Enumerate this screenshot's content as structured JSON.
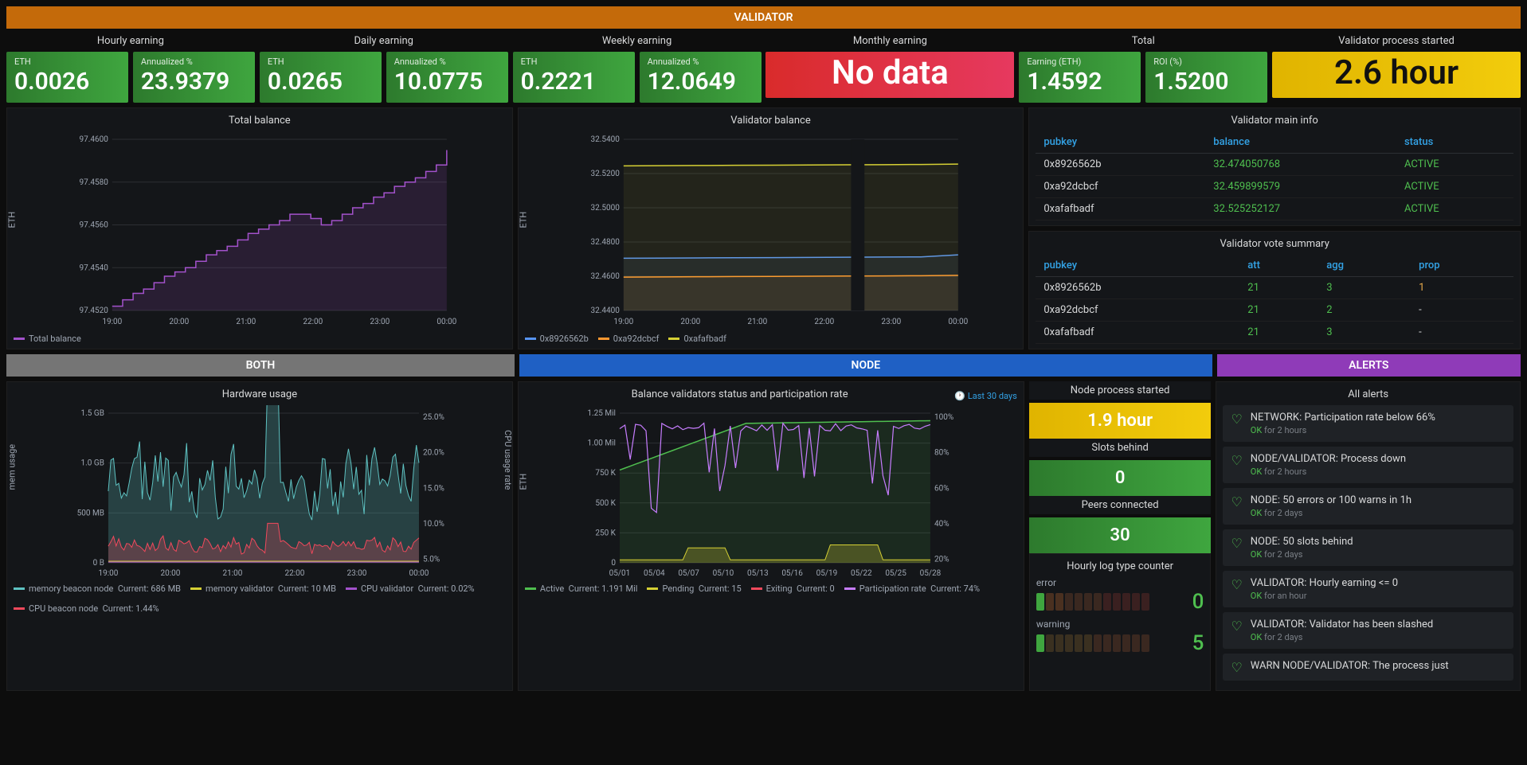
{
  "sections": {
    "validator": "VALIDATOR",
    "both": "BOTH",
    "node": "NODE",
    "alerts": "ALERTS"
  },
  "earnings": {
    "hourly": {
      "title": "Hourly earning",
      "eth_label": "ETH",
      "eth": "0.0026",
      "pct_label": "Annualized %",
      "pct": "23.9379"
    },
    "daily": {
      "title": "Daily earning",
      "eth_label": "ETH",
      "eth": "0.0265",
      "pct_label": "Annualized %",
      "pct": "10.0775"
    },
    "weekly": {
      "title": "Weekly earning",
      "eth_label": "ETH",
      "eth": "0.2221",
      "pct_label": "Annualized %",
      "pct": "12.0649"
    },
    "monthly": {
      "title": "Monthly earning",
      "nodata": "No data"
    },
    "total": {
      "title": "Total",
      "eth_label": "Earning (ETH)",
      "eth": "1.4592",
      "roi_label": "ROI (%)",
      "roi": "1.5200"
    },
    "process": {
      "title": "Validator process started",
      "value": "2.6 hour"
    }
  },
  "total_balance": {
    "title": "Total balance",
    "y_label": "ETH",
    "y_ticks": [
      "97.4520",
      "97.4540",
      "97.4560",
      "97.4580",
      "97.4600"
    ],
    "x_ticks": [
      "19:00",
      "20:00",
      "21:00",
      "22:00",
      "23:00",
      "00:00"
    ],
    "legend": "Total balance",
    "color": "#a352cc",
    "series": [
      97.4522,
      97.4525,
      97.4528,
      97.453,
      97.4533,
      97.4536,
      97.4538,
      97.454,
      97.4543,
      97.4546,
      97.4548,
      97.455,
      97.4553,
      97.4556,
      97.4558,
      97.456,
      97.4562,
      97.4565,
      97.4565,
      97.4563,
      97.456,
      97.4562,
      97.4565,
      97.4568,
      97.457,
      97.4573,
      97.4575,
      97.4578,
      97.458,
      97.4582,
      97.4585,
      97.4588,
      97.4595
    ]
  },
  "validator_balance": {
    "title": "Validator balance",
    "y_label": "ETH",
    "y_ticks": [
      "32.4400",
      "32.4600",
      "32.4800",
      "32.5000",
      "32.5200",
      "32.5400"
    ],
    "x_ticks": [
      "19:00",
      "20:00",
      "21:00",
      "22:00",
      "23:00",
      "00:00"
    ],
    "series": [
      {
        "name": "0x8926562b",
        "color": "#5794f2",
        "values": [
          32.4705,
          32.4706,
          32.4707,
          32.4708,
          32.4709,
          32.471,
          32.4711,
          32.4712,
          32.4713,
          32.4725
        ]
      },
      {
        "name": "0xa92dcbcf",
        "color": "#ff9830",
        "values": [
          32.4595,
          32.4596,
          32.4597,
          32.4598,
          32.4599,
          32.46,
          32.4601,
          32.4602,
          32.4603,
          32.4605
        ]
      },
      {
        "name": "0xafafbadf",
        "color": "#d6d034",
        "values": [
          32.5245,
          32.5246,
          32.5247,
          32.5248,
          32.5249,
          32.525,
          32.5251,
          32.5252,
          32.5253,
          32.5255
        ]
      }
    ]
  },
  "main_info": {
    "title": "Validator main info",
    "headers": [
      "pubkey",
      "balance",
      "status"
    ],
    "rows": [
      [
        "0x8926562b",
        "32.474050768",
        "ACTIVE"
      ],
      [
        "0xa92dcbcf",
        "32.459899579",
        "ACTIVE"
      ],
      [
        "0xafafbadf",
        "32.525252127",
        "ACTIVE"
      ]
    ]
  },
  "vote_summary": {
    "title": "Validator vote summary",
    "headers": [
      "pubkey",
      "att",
      "agg",
      "prop"
    ],
    "rows": [
      [
        "0x8926562b",
        "21",
        "3",
        "1"
      ],
      [
        "0xa92dcbcf",
        "21",
        "2",
        "-"
      ],
      [
        "0xafafbadf",
        "21",
        "3",
        "-"
      ]
    ]
  },
  "hardware": {
    "title": "Hardware usage",
    "y_left_label": "mem usage",
    "y_right_label": "CPU usage rate",
    "y_left_ticks": [
      "0 B",
      "500 MB",
      "1.0 GB",
      "1.5 GB"
    ],
    "y_right_ticks": [
      "25.0%",
      "20.0%",
      "15.0%",
      "10.0%",
      "5.0%"
    ],
    "x_ticks": [
      "19:00",
      "20:00",
      "21:00",
      "22:00",
      "23:00",
      "00:00"
    ],
    "legend": [
      {
        "name": "memory beacon node",
        "extra": "Current: 686 MB",
        "color": "#5ec2c2"
      },
      {
        "name": "memory validator",
        "extra": "Current: 10 MB",
        "color": "#d6d034"
      },
      {
        "name": "CPU validator",
        "extra": "Current: 0.02%",
        "color": "#a352cc"
      },
      {
        "name": "CPU beacon node",
        "extra": "Current: 1.44%",
        "color": "#f2495c"
      }
    ]
  },
  "participation": {
    "title": "Balance validators status and participation rate",
    "timerange": "Last 30 days",
    "y_left_label": "ETH",
    "y_left_ticks": [
      "0",
      "250 K",
      "500 K",
      "750 K",
      "1.00 Mil",
      "1.25 Mil"
    ],
    "y_right_ticks": [
      "100%",
      "80%",
      "60%",
      "40%",
      "20%"
    ],
    "x_ticks": [
      "05/01",
      "05/04",
      "05/07",
      "05/10",
      "05/13",
      "05/16",
      "05/19",
      "05/22",
      "05/25",
      "05/28"
    ],
    "legend": [
      {
        "name": "Active",
        "extra": "Current: 1.191 Mil",
        "color": "#4fbf4f"
      },
      {
        "name": "Pending",
        "extra": "Current: 15",
        "color": "#d6d034"
      },
      {
        "name": "Exiting",
        "extra": "Current: 0",
        "color": "#f2495c"
      },
      {
        "name": "Participation rate",
        "extra": "Current: 74%",
        "color": "#c77dff"
      }
    ]
  },
  "node_stats": {
    "process": {
      "title": "Node process started",
      "value": "1.9 hour",
      "bg": "yellow"
    },
    "slots": {
      "title": "Slots behind",
      "value": "0",
      "bg": "green"
    },
    "peers": {
      "title": "Peers connected",
      "value": "30",
      "bg": "green"
    }
  },
  "log_counter": {
    "title": "Hourly log type counter",
    "error": {
      "label": "error",
      "count": "0",
      "color": "#4fbf4f",
      "cells": [
        "#3fa63f",
        "#4a3020",
        "#4a3020",
        "#3a2820",
        "#3a2820",
        "#3a2820",
        "#3a2820",
        "#3a2020",
        "#3a2020",
        "#3a2020",
        "#3a2020",
        "#3a2020"
      ]
    },
    "warning": {
      "label": "warning",
      "count": "5",
      "color": "#4fbf4f",
      "cells": [
        "#3fa63f",
        "#3a3020",
        "#3a3020",
        "#3a3020",
        "#3a3020",
        "#3a3020",
        "#3a2820",
        "#3a2820",
        "#3a2820",
        "#3a2820",
        "#3a2820",
        "#3a2820"
      ]
    }
  },
  "alerts_panel": {
    "title": "All alerts",
    "items": [
      {
        "title": "NETWORK: Participation rate below 66%",
        "state": "OK",
        "dur": "for 2 hours"
      },
      {
        "title": "NODE/VALIDATOR: Process down",
        "state": "OK",
        "dur": "for 2 hours"
      },
      {
        "title": "NODE: 50 errors or 100 warns in 1h",
        "state": "OK",
        "dur": "for 2 days"
      },
      {
        "title": "NODE: 50 slots behind",
        "state": "OK",
        "dur": "for 2 days"
      },
      {
        "title": "VALIDATOR: Hourly earning <= 0",
        "state": "OK",
        "dur": "for an hour"
      },
      {
        "title": "VALIDATOR: Validator has been slashed",
        "state": "OK",
        "dur": "for 2 days"
      },
      {
        "title": "WARN NODE/VALIDATOR: The process just",
        "state": "",
        "dur": ""
      }
    ]
  },
  "colors": {
    "panel_bg": "#141619",
    "grid": "#2c2f33",
    "text": "#d8d9da"
  }
}
